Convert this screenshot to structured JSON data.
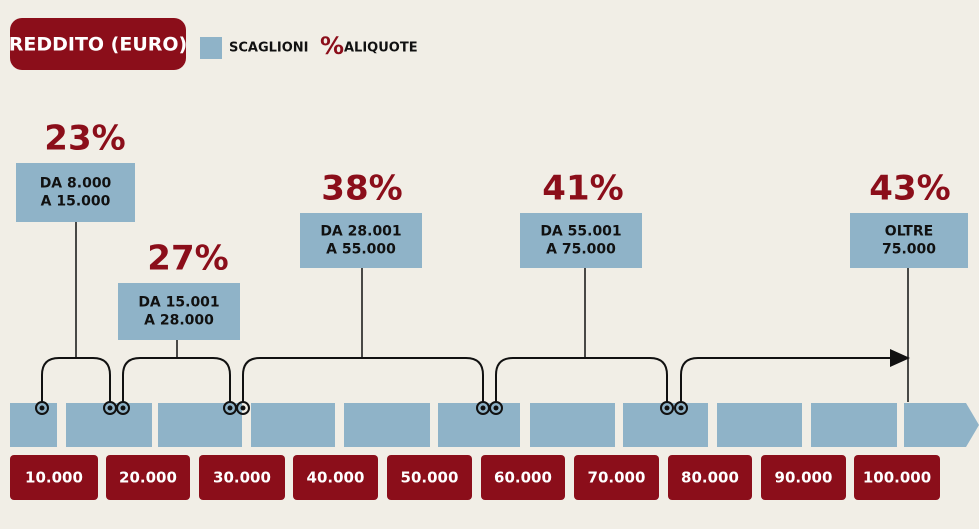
{
  "header": {
    "title": "REDDITO (EURO)"
  },
  "legend": {
    "brackets": "SCAGLIONI",
    "percent_symbol": "%",
    "rates": "ALIQUOTE"
  },
  "brackets": [
    {
      "rate": "23%",
      "lines": [
        "DA 8.000",
        "A 15.000"
      ]
    },
    {
      "rate": "27%",
      "lines": [
        "DA 15.001",
        "A 28.000"
      ]
    },
    {
      "rate": "38%",
      "lines": [
        "DA 28.001",
        "A 55.000"
      ]
    },
    {
      "rate": "41%",
      "lines": [
        "DA 55.001",
        "A 75.000"
      ]
    },
    {
      "rate": "43%",
      "lines": [
        "OLTRE",
        "75.000"
      ]
    }
  ],
  "axis": {
    "labels": [
      "10.000",
      "20.000",
      "30.000",
      "40.000",
      "50.000",
      "60.000",
      "70.000",
      "80.000",
      "90.000",
      "100.000"
    ]
  }
}
